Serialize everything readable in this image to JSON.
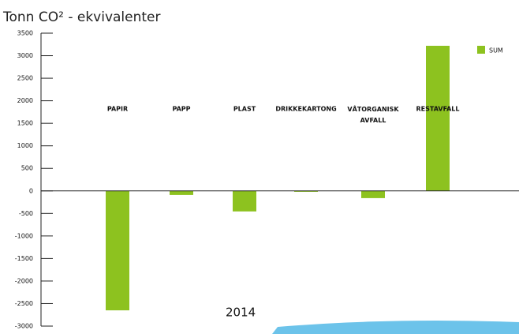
{
  "chart_data": {
    "type": "bar",
    "title": "Tonn CO² - ekvivalenter",
    "categories": [
      "PAPIR",
      "PAPP",
      "PLAST",
      "DRIKKEKARTONG",
      "VÅTORGANISK AVFALL",
      "RESTAVFALL"
    ],
    "series": [
      {
        "name": "SUM",
        "color": "#8dc21f",
        "values": [
          -2650,
          -90,
          -455,
          -20,
          -160,
          3220
        ]
      }
    ],
    "ylim": [
      -3000,
      3500
    ],
    "yticks": [
      -3000,
      -2500,
      -2000,
      -1500,
      -1000,
      -500,
      0,
      500,
      1000,
      1500,
      2000,
      2500,
      3000,
      3500
    ],
    "annotation": "2014",
    "legend": "top-right"
  }
}
